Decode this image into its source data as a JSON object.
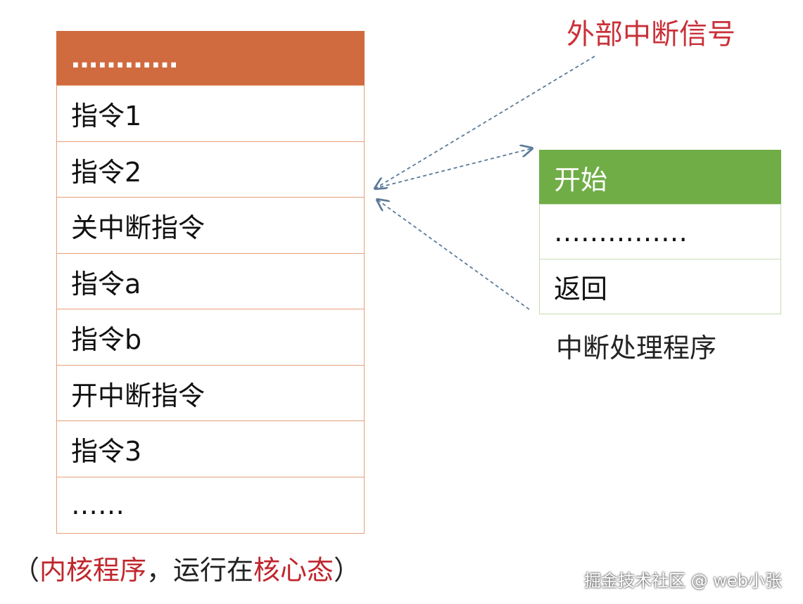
{
  "kernel_program": {
    "rows": [
      "…………",
      "指令1",
      "指令2",
      "关中断指令",
      "指令a",
      "指令b",
      "开中断指令",
      "指令3",
      "……"
    ],
    "caption": [
      "（",
      "内核程序",
      "，运行在",
      "核心态",
      "）"
    ]
  },
  "signal_label": "外部中断信号",
  "interrupt_handler": {
    "rows": [
      "开始",
      "……………",
      "返回"
    ],
    "caption": "中断处理程序"
  },
  "watermark": "掘金技术社区 @ web小张"
}
